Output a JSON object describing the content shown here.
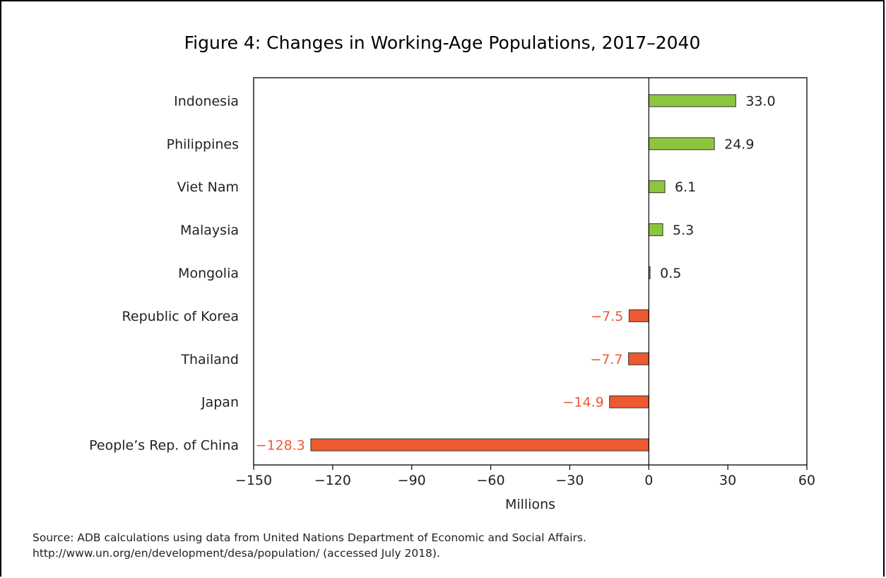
{
  "chart_data": {
    "type": "bar",
    "orientation": "horizontal",
    "title": "Figure 4: Changes in Working-Age Populations, 2017–2040",
    "xlabel": "Millions",
    "ylabel": "",
    "xlim": [
      -150,
      60
    ],
    "xticks": [
      -150,
      -120,
      -90,
      -60,
      -30,
      0,
      30,
      60
    ],
    "xtick_labels": [
      "−150",
      "−120",
      "−90",
      "−60",
      "−30",
      "0",
      "30",
      "60"
    ],
    "grid": false,
    "categories": [
      "Indonesia",
      "Philippines",
      "Viet Nam",
      "Malaysia",
      "Mongolia",
      "Republic of Korea",
      "Thailand",
      "Japan",
      "People’s Rep. of China"
    ],
    "values": [
      33.0,
      24.9,
      6.1,
      5.3,
      0.5,
      -7.5,
      -7.7,
      -14.9,
      -128.3
    ],
    "value_labels": [
      "33.0",
      "24.9",
      "6.1",
      "5.3",
      "0.5",
      "−7.5",
      "−7.7",
      "−14.9",
      "−128.3"
    ],
    "colors": {
      "positive": "#8cc63f",
      "negative": "#ed5a30",
      "negative_label": "#ed5a30",
      "positive_label": "#222222",
      "axis": "#000000"
    }
  },
  "source": {
    "line1": "Source: ADB calculations using data from United Nations Department of Economic and Social Affairs.",
    "line2": "http://www.un.org/en/development/desa/population/ (accessed July 2018)."
  }
}
